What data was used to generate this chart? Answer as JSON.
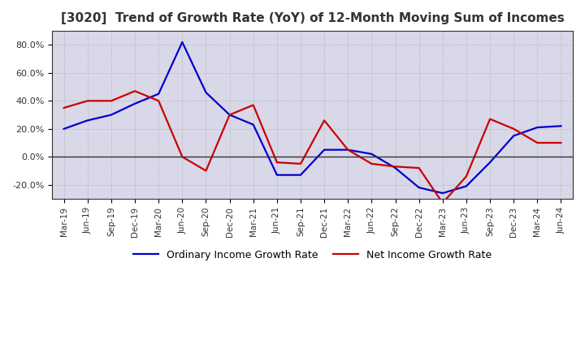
{
  "title": "[3020]  Trend of Growth Rate (YoY) of 12-Month Moving Sum of Incomes",
  "ylim": [
    -0.3,
    0.9
  ],
  "yticks": [
    -0.2,
    0.0,
    0.2,
    0.4,
    0.6,
    0.8
  ],
  "ytick_labels": [
    "-20.0%",
    "0.0%",
    "20.0%",
    "40.0%",
    "60.0%",
    "80.0%"
  ],
  "background_color": "#ffffff",
  "plot_bg_color": "#d8d8e8",
  "grid_color": "#aaaaaa",
  "ordinary_color": "#0000cc",
  "net_color": "#cc0000",
  "legend_ordinary": "Ordinary Income Growth Rate",
  "legend_net": "Net Income Growth Rate",
  "x_labels": [
    "Mar-19",
    "Jun-19",
    "Sep-19",
    "Dec-19",
    "Mar-20",
    "Jun-20",
    "Sep-20",
    "Dec-20",
    "Mar-21",
    "Jun-21",
    "Sep-21",
    "Dec-21",
    "Mar-22",
    "Jun-22",
    "Sep-22",
    "Dec-22",
    "Mar-23",
    "Jun-23",
    "Sep-23",
    "Dec-23",
    "Mar-24",
    "Jun-24"
  ],
  "ordinary_income": [
    0.2,
    0.26,
    0.3,
    0.38,
    0.45,
    0.82,
    0.46,
    0.3,
    0.23,
    -0.13,
    -0.13,
    0.05,
    0.05,
    0.02,
    -0.08,
    -0.22,
    -0.26,
    -0.21,
    -0.04,
    0.15,
    0.21,
    0.22
  ],
  "net_income": [
    0.35,
    0.4,
    0.4,
    0.47,
    0.4,
    0.0,
    -0.1,
    0.3,
    0.37,
    -0.04,
    -0.05,
    0.26,
    0.05,
    -0.05,
    -0.07,
    -0.08,
    -0.33,
    -0.14,
    0.27,
    0.2,
    0.1,
    0.1
  ]
}
